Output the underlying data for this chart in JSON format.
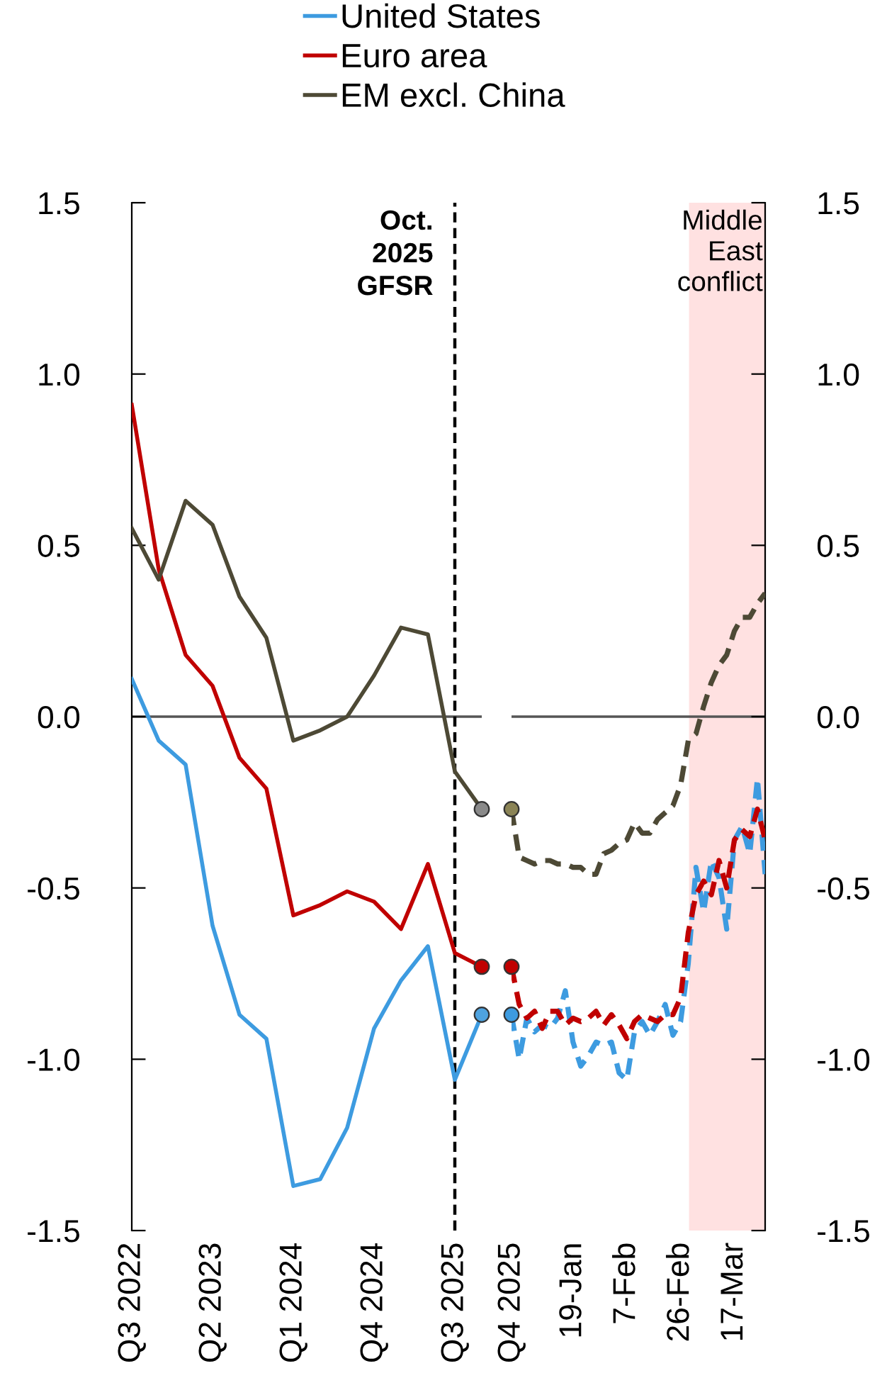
{
  "chart_data": [
    {
      "type": "line",
      "categories": [
        "Q3 2022",
        null,
        null,
        "Q2 2023",
        null,
        null,
        "Q1 2024",
        null,
        null,
        "Q4 2024",
        null,
        null,
        "Q3 2025",
        null
      ],
      "ylim": [
        -1.5,
        1.5
      ],
      "yticks": [
        {
          "value": 1.5,
          "label": "1.5"
        },
        {
          "value": 1.0,
          "label": "1.0"
        },
        {
          "value": 0.5,
          "label": "0.5"
        },
        {
          "value": 0,
          "label": "0.0"
        },
        {
          "value": -0.5,
          "label": "-0.5"
        },
        {
          "value": -1.0,
          "label": "-1.0"
        },
        {
          "value": -1.5,
          "label": "-1.5"
        }
      ],
      "legend": "top",
      "line_style": "solid",
      "ref_lines": [
        {
          "axis": "x",
          "value": "Q3 2025",
          "label": "Oct.\n2025\nGFSR",
          "color": "#000000",
          "line_style": "dashed"
        },
        {
          "axis": "y",
          "value": 0,
          "label": null,
          "color": "#555555",
          "line_style": "solid"
        }
      ],
      "series": [
        {
          "name": "United States",
          "color": "#3d9be0",
          "values": [
            0.11,
            -0.07,
            -0.14,
            -0.61,
            -0.87,
            -0.94,
            -1.37,
            -1.35,
            -1.2,
            -0.91,
            -0.77,
            -0.67,
            -1.06,
            -0.87
          ]
        },
        {
          "name": "Euro area",
          "color": "#c00000",
          "values": [
            0.91,
            0.43,
            0.18,
            0.09,
            -0.12,
            -0.21,
            -0.58,
            -0.55,
            -0.51,
            -0.54,
            -0.62,
            -0.43,
            -0.69,
            -0.73
          ]
        },
        {
          "name": "EM excl. China",
          "color": "#4d4935",
          "values": [
            0.55,
            0.4,
            0.63,
            0.56,
            0.35,
            0.23,
            -0.07,
            -0.04,
            0.0,
            0.12,
            0.26,
            0.24,
            -0.16,
            -0.27
          ]
        },
        {
          "type": "scatter",
          "marker": "circle",
          "color": "#4ea3e0",
          "values": [
            null,
            null,
            null,
            null,
            null,
            null,
            null,
            null,
            null,
            null,
            null,
            null,
            null,
            -0.87
          ]
        },
        {
          "type": "scatter",
          "marker": "circle",
          "color": "#c00000",
          "values": [
            null,
            null,
            null,
            null,
            null,
            null,
            null,
            null,
            null,
            null,
            null,
            null,
            null,
            -0.73
          ]
        },
        {
          "type": "scatter",
          "marker": "circle",
          "color": "#8a8a8a",
          "values": [
            null,
            null,
            null,
            null,
            null,
            null,
            null,
            null,
            null,
            null,
            null,
            null,
            null,
            -0.27
          ]
        }
      ]
    },
    {
      "type": "line",
      "categories": [
        "Q4 2025",
        null,
        null,
        null,
        null,
        null,
        null,
        null,
        "19-Jan",
        null,
        null,
        null,
        null,
        null,
        null,
        "7-Feb",
        null,
        null,
        null,
        null,
        null,
        null,
        "26-Feb",
        null,
        null,
        null,
        null,
        null,
        null,
        "17-Mar",
        null,
        null,
        null,
        null
      ],
      "ylim": [
        -1.5,
        1.5
      ],
      "yticks": [
        {
          "value": 1.5,
          "label": "1.5"
        },
        {
          "value": 1.0,
          "label": "1.0"
        },
        {
          "value": 0.5,
          "label": "0.5"
        },
        {
          "value": 0,
          "label": "0.0"
        },
        {
          "value": -0.5,
          "label": "-0.5"
        },
        {
          "value": -1.0,
          "label": "-1.0"
        },
        {
          "value": -1.5,
          "label": "-1.5"
        }
      ],
      "line_style": "dashed",
      "annotations": [
        "Middle\nEast\nconflict"
      ],
      "ref_lines": [
        {
          "axis": "y",
          "value": 0,
          "label": null,
          "color": "#555555",
          "line_style": "solid"
        }
      ],
      "series": [
        {
          "color": "#3d9be0",
          "values": [
            -0.87,
            -1.0,
            -0.88,
            -0.92,
            -0.9,
            -0.91,
            -0.88,
            -0.8,
            -0.95,
            -1.02,
            -0.99,
            -0.95,
            -0.96,
            -0.95,
            -1.04,
            -1.06,
            -0.92,
            -0.89,
            -0.93,
            -0.89,
            -0.84,
            -0.93,
            -0.89,
            -0.72,
            -0.44,
            -0.57,
            -0.42,
            -0.47,
            -0.62,
            -0.36,
            -0.32,
            -0.4,
            -0.18,
            -0.46
          ]
        },
        {
          "color": "#c00000",
          "values": [
            -0.73,
            -0.84,
            -0.88,
            -0.86,
            -0.91,
            -0.86,
            -0.86,
            -0.9,
            -0.88,
            -0.89,
            -0.88,
            -0.86,
            -0.9,
            -0.87,
            -0.9,
            -0.94,
            -0.89,
            -0.87,
            -0.88,
            -0.89,
            -0.87,
            -0.87,
            -0.82,
            -0.63,
            -0.52,
            -0.48,
            -0.52,
            -0.42,
            -0.5,
            -0.36,
            -0.33,
            -0.35,
            -0.27,
            -0.36
          ]
        },
        {
          "color": "#4d4935",
          "values": [
            -0.27,
            -0.41,
            -0.42,
            -0.43,
            -0.42,
            -0.42,
            -0.43,
            -0.43,
            -0.44,
            -0.44,
            -0.46,
            -0.46,
            -0.4,
            -0.39,
            -0.37,
            -0.36,
            -0.31,
            -0.34,
            -0.34,
            -0.3,
            -0.28,
            -0.26,
            -0.2,
            -0.07,
            -0.05,
            0.03,
            0.1,
            0.15,
            0.18,
            0.25,
            0.29,
            0.29,
            0.33,
            0.36
          ]
        },
        {
          "type": "scatter",
          "marker": "circle",
          "color": "#3d9be0",
          "values": [
            -0.87,
            null,
            null,
            null,
            null,
            null,
            null,
            null,
            null,
            null,
            null,
            null,
            null,
            null,
            null,
            null,
            null,
            null,
            null,
            null,
            null,
            null,
            null,
            null,
            null,
            null,
            null,
            null,
            null,
            null,
            null,
            null,
            null,
            null
          ]
        },
        {
          "type": "scatter",
          "marker": "circle",
          "color": "#c00000",
          "values": [
            -0.73,
            null,
            null,
            null,
            null,
            null,
            null,
            null,
            null,
            null,
            null,
            null,
            null,
            null,
            null,
            null,
            null,
            null,
            null,
            null,
            null,
            null,
            null,
            null,
            null,
            null,
            null,
            null,
            null,
            null,
            null,
            null,
            null,
            null
          ]
        },
        {
          "type": "scatter",
          "marker": "circle",
          "color": "#8b8456",
          "values": [
            -0.27,
            null,
            null,
            null,
            null,
            null,
            null,
            null,
            null,
            null,
            null,
            null,
            null,
            null,
            null,
            null,
            null,
            null,
            null,
            null,
            null,
            null,
            null,
            null,
            null,
            null,
            null,
            null,
            null,
            null,
            null,
            null,
            null,
            null
          ]
        }
      ]
    }
  ]
}
